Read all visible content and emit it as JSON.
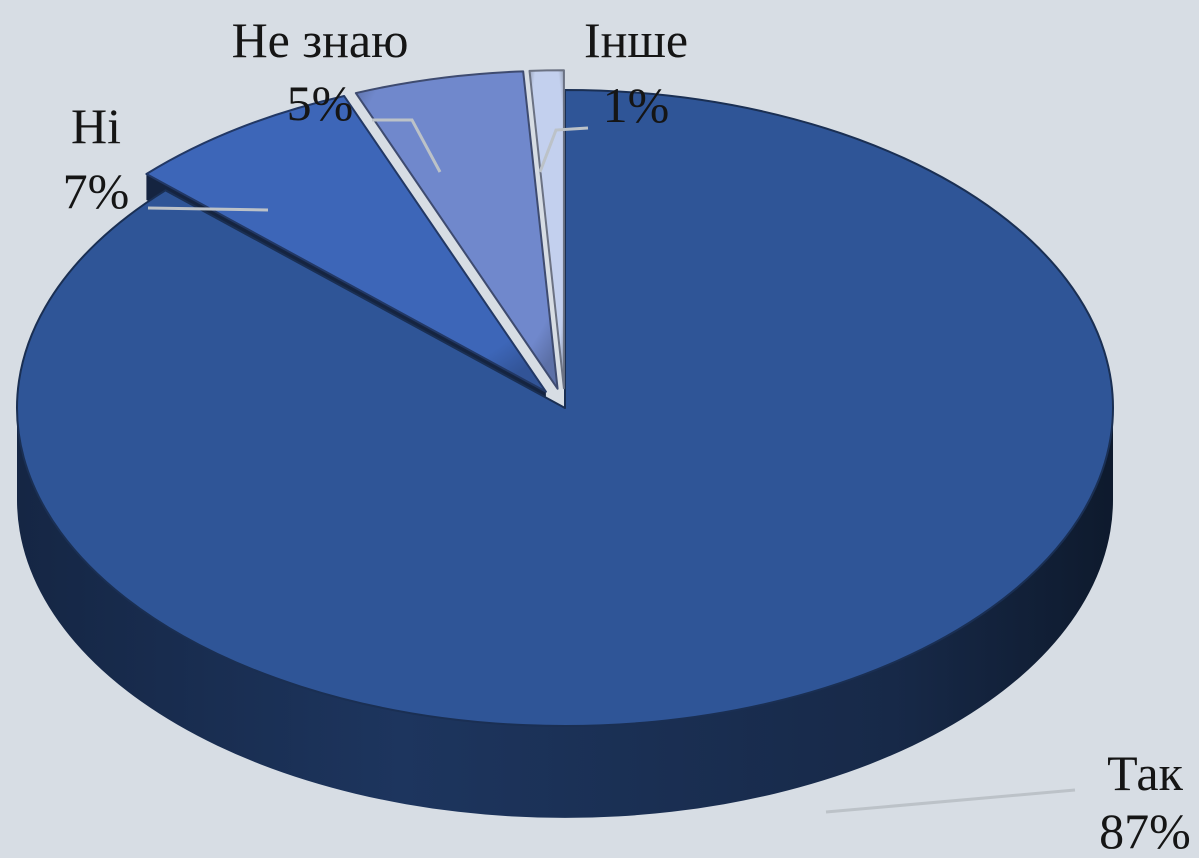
{
  "chart_data": {
    "type": "pie",
    "style": "3d-exploded",
    "slices": [
      {
        "label": "Так",
        "value": 87,
        "value_label": "87%",
        "color": "#2f5597"
      },
      {
        "label": "Ні",
        "value": 7,
        "value_label": "7%",
        "color": "#3d66b8"
      },
      {
        "label": "Не знаю",
        "value": 5,
        "value_label": "5%",
        "color": "#7088cc"
      },
      {
        "label": "Інше",
        "value": 1,
        "value_label": "1%",
        "color": "#c3d0ee"
      }
    ],
    "legend": "none"
  },
  "colors": {
    "background": "#d7dde4"
  }
}
